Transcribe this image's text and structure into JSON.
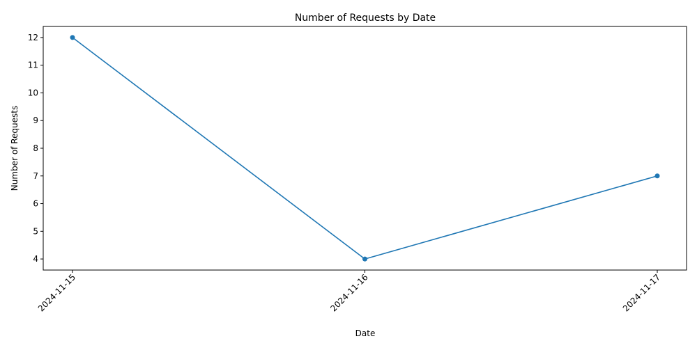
{
  "chart_data": {
    "type": "line",
    "title": "Number of Requests by Date",
    "xlabel": "Date",
    "ylabel": "Number of Requests",
    "categories": [
      "2024-11-15",
      "2024-11-16",
      "2024-11-17"
    ],
    "values": [
      12,
      4,
      7
    ],
    "yticks": [
      4,
      5,
      6,
      7,
      8,
      9,
      10,
      11,
      12
    ],
    "ylim": [
      3.6,
      12.4
    ],
    "grid": false,
    "marker": "circle",
    "color": "#1f77b4"
  }
}
